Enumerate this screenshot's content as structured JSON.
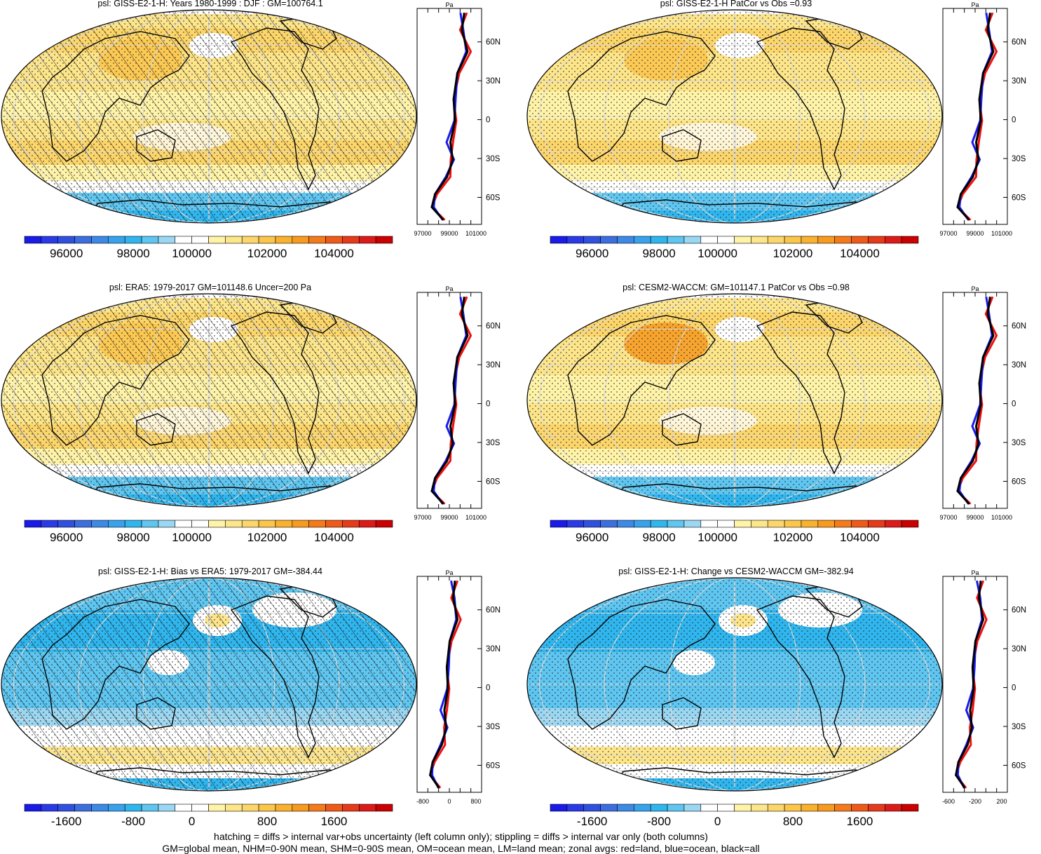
{
  "footnotes": {
    "line1": "hatching = diffs > internal var+obs uncertainty (left column only); stippling = diffs > internal var only (both columns)",
    "line2": "GM=global mean, NHM=0-90N mean, SHM=0-90S mean, OM=ocean mean, LM=land mean; zonal avgs: red=land, blue=ocean, black=all"
  },
  "palettes": {
    "abs": [
      "#1a1aeb",
      "#2a3ae8",
      "#3050e0",
      "#3b6fe0",
      "#3c8ae6",
      "#38a3ec",
      "#2fb6ee",
      "#5ec6f0",
      "#9ad7f2",
      "#ffffff",
      "#ffffff",
      "#fff3a8",
      "#fde58a",
      "#fcd66a",
      "#fbc64a",
      "#f9b12e",
      "#f79a1e",
      "#f47a1a",
      "#ef5a18",
      "#e63a18",
      "#dd1a18",
      "#cc0000"
    ],
    "diff": [
      "#1a1aeb",
      "#2a3ae8",
      "#3050e0",
      "#3b6fe0",
      "#3c8ae6",
      "#38a3ec",
      "#2fb6ee",
      "#5ec6f0",
      "#9ad7f2",
      "#ffffff",
      "#ffffff",
      "#fff3a8",
      "#fde58a",
      "#fcd66a",
      "#fbc64a",
      "#f9b12e",
      "#f79a1e",
      "#f47a1a",
      "#ef5a18",
      "#e63a18",
      "#dd1a18",
      "#cc0000"
    ]
  },
  "zonal_legend": {
    "land": "#ee1111",
    "ocean": "#1a1aee",
    "all": "#000000"
  },
  "lat_labels": [
    "60N",
    "30N",
    "0",
    "30S",
    "60S"
  ],
  "panels": [
    {
      "title": "psl: GISS-E2-1-H: Years 1980-1999 : DJF : GM=100764.1",
      "hatching": true,
      "kind": "abs",
      "zonal_unit": "Pa",
      "zonal_ticks": [
        "97000",
        "99000",
        "101000"
      ],
      "colorbar_labels": [
        "96000",
        "98000",
        "100000",
        "102000",
        "104000"
      ]
    },
    {
      "title": "psl: GISS-E2-1-H PatCor vs Obs =0.93",
      "hatching": false,
      "kind": "abs",
      "zonal_unit": "Pa",
      "zonal_ticks": [
        "97000",
        "99000",
        "101000"
      ],
      "colorbar_labels": [
        "96000",
        "98000",
        "100000",
        "102000",
        "104000"
      ]
    },
    {
      "title": "psl: ERA5: 1979-2017 GM=101148.6 Uncer=200 Pa",
      "hatching": true,
      "kind": "abs",
      "zonal_unit": "Pa",
      "zonal_ticks": [
        "97000",
        "99000",
        "101000"
      ],
      "colorbar_labels": [
        "96000",
        "98000",
        "100000",
        "102000",
        "104000"
      ]
    },
    {
      "title": "psl: CESM2-WACCM: GM=101147.1 PatCor vs Obs =0.98",
      "hatching": false,
      "kind": "abs",
      "zonal_unit": "Pa",
      "zonal_ticks": [
        "97000",
        "99000",
        "101000"
      ],
      "colorbar_labels": [
        "96000",
        "98000",
        "100000",
        "102000",
        "104000"
      ]
    },
    {
      "title": "psl: GISS-E2-1-H: Bias vs ERA5: 1979-2017 GM=-384.44",
      "hatching": true,
      "kind": "diff",
      "zonal_unit": "Pa",
      "zonal_ticks": [
        "-800",
        "0",
        "800"
      ],
      "colorbar_labels": [
        "-1600",
        "-800",
        "0",
        "800",
        "1600"
      ]
    },
    {
      "title": "psl: GISS-E2-1-H: Change vs CESM2-WACCM GM=-382.94",
      "hatching": false,
      "kind": "diff",
      "zonal_unit": "Pa",
      "zonal_ticks": [
        "-600",
        "-200",
        "200"
      ],
      "colorbar_labels": [
        "-1600",
        "-800",
        "0",
        "800",
        "1600"
      ]
    }
  ]
}
